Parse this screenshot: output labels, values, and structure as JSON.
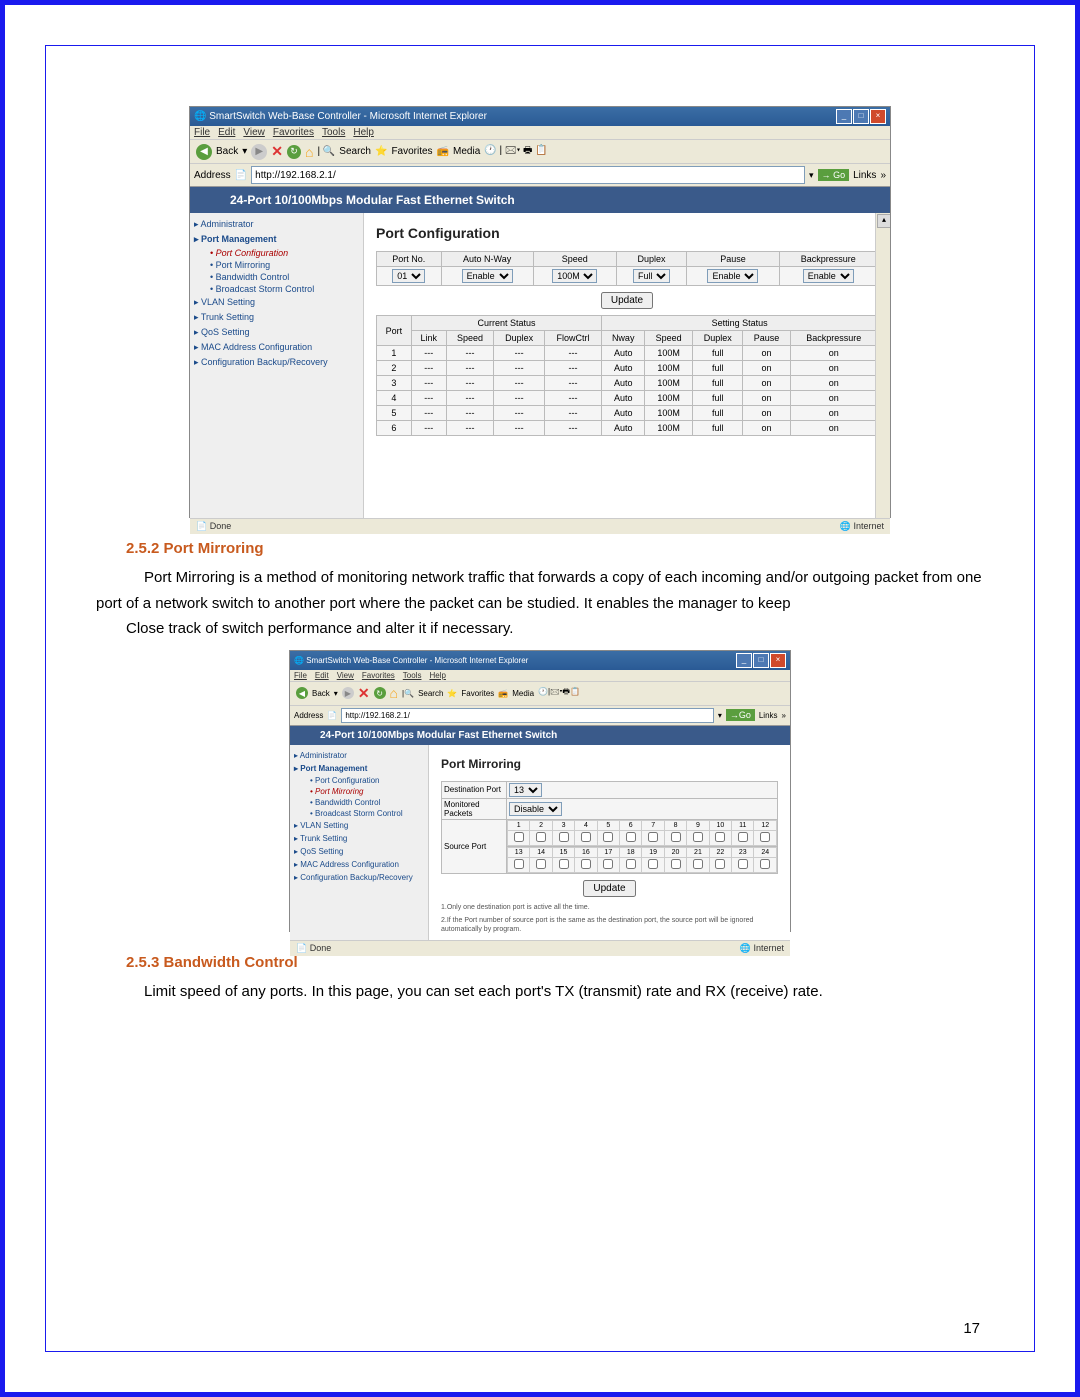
{
  "window": {
    "title": "SmartSwitch Web-Base Controller - Microsoft Internet Explorer",
    "menus": [
      "File",
      "Edit",
      "View",
      "Favorites",
      "Tools",
      "Help"
    ],
    "back": "Back",
    "search": "Search",
    "favorites": "Favorites",
    "media": "Media",
    "addr_label": "Address",
    "url": "http://192.168.2.1/",
    "go": "Go",
    "links": "Links",
    "done": "Done",
    "internet": "Internet"
  },
  "switch_title": "24-Port 10/100Mbps Modular Fast Ethernet Switch",
  "sidebar": {
    "items": [
      {
        "t": "Administrator",
        "cls": "grp"
      },
      {
        "t": "Port Management",
        "cls": "grp act"
      },
      {
        "t": "Port Configuration",
        "cls": "sub act"
      },
      {
        "t": "Port Mirroring",
        "cls": "sub reg"
      },
      {
        "t": "Bandwidth Control",
        "cls": "sub reg"
      },
      {
        "t": "Broadcast Storm Control",
        "cls": "sub reg"
      },
      {
        "t": "VLAN Setting",
        "cls": "grp"
      },
      {
        "t": "Trunk Setting",
        "cls": "grp"
      },
      {
        "t": "QoS Setting",
        "cls": "grp"
      },
      {
        "t": "MAC Address Configuration",
        "cls": "grp"
      },
      {
        "t": "Configuration Backup/Recovery",
        "cls": "grp"
      }
    ]
  },
  "sidebar2": {
    "items": [
      {
        "t": "Administrator",
        "cls": "grp"
      },
      {
        "t": "Port Management",
        "cls": "grp act"
      },
      {
        "t": "Port Configuration",
        "cls": "sub reg"
      },
      {
        "t": "Port Mirroring",
        "cls": "sub act"
      },
      {
        "t": "Bandwidth Control",
        "cls": "sub reg"
      },
      {
        "t": "Broadcast Storm Control",
        "cls": "sub reg"
      },
      {
        "t": "VLAN Setting",
        "cls": "grp"
      },
      {
        "t": "Trunk Setting",
        "cls": "grp"
      },
      {
        "t": "QoS Setting",
        "cls": "grp"
      },
      {
        "t": "MAC Address Configuration",
        "cls": "grp"
      },
      {
        "t": "Configuration Backup/Recovery",
        "cls": "grp"
      }
    ]
  },
  "portconfig": {
    "title": "Port Configuration",
    "headers": [
      "Port No.",
      "Auto N-Way",
      "Speed",
      "Duplex",
      "Pause",
      "Backpressure"
    ],
    "sel": {
      "port": "01",
      "auto": "Enable",
      "speed": "100M",
      "duplex": "Full",
      "pause": "Enable",
      "back": "Enable"
    },
    "update": "Update",
    "status_headers": {
      "port": "Port",
      "current": "Current Status",
      "setting": "Setting Status",
      "link": "Link",
      "speed": "Speed",
      "duplex": "Duplex",
      "flow": "FlowCtrl",
      "nway": "Nway",
      "pause": "Pause",
      "back": "Backpressure"
    },
    "rows": [
      {
        "p": "1",
        "l": "---",
        "s": "---",
        "d": "---",
        "f": "---",
        "nw": "Auto",
        "sp": "100M",
        "dp": "full",
        "pa": "on",
        "bk": "on"
      },
      {
        "p": "2",
        "l": "---",
        "s": "---",
        "d": "---",
        "f": "---",
        "nw": "Auto",
        "sp": "100M",
        "dp": "full",
        "pa": "on",
        "bk": "on"
      },
      {
        "p": "3",
        "l": "---",
        "s": "---",
        "d": "---",
        "f": "---",
        "nw": "Auto",
        "sp": "100M",
        "dp": "full",
        "pa": "on",
        "bk": "on"
      },
      {
        "p": "4",
        "l": "---",
        "s": "---",
        "d": "---",
        "f": "---",
        "nw": "Auto",
        "sp": "100M",
        "dp": "full",
        "pa": "on",
        "bk": "on"
      },
      {
        "p": "5",
        "l": "---",
        "s": "---",
        "d": "---",
        "f": "---",
        "nw": "Auto",
        "sp": "100M",
        "dp": "full",
        "pa": "on",
        "bk": "on"
      },
      {
        "p": "6",
        "l": "---",
        "s": "---",
        "d": "---",
        "f": "---",
        "nw": "Auto",
        "sp": "100M",
        "dp": "full",
        "pa": "on",
        "bk": "on"
      }
    ]
  },
  "mirror": {
    "title": "Port Mirroring",
    "dest_label": "Destination Port",
    "dest_val": "13",
    "mon_label": "Monitored Packets",
    "mon_val": "Disable",
    "src_label": "Source Port",
    "ports_a": [
      "1",
      "2",
      "3",
      "4",
      "5",
      "6",
      "7",
      "8",
      "9",
      "10",
      "11",
      "12"
    ],
    "ports_b": [
      "13",
      "14",
      "15",
      "16",
      "17",
      "18",
      "19",
      "20",
      "21",
      "22",
      "23",
      "24"
    ],
    "update": "Update",
    "note1": "1.Only one destination port is active all the time.",
    "note2": "2.If the Port number of source port is the same as the destination port, the source port will be ignored automatically by program."
  },
  "doc": {
    "h1": "2.5.2 Port Mirroring",
    "p1": "Port Mirroring is a method of monitoring network traffic that forwards a copy        of each incoming and/or outgoing packet from one port of a network switch to   another port where the packet can be studied. It enables the manager to keep",
    "p1b": "Close track of switch performance and alter it if necessary.",
    "h2": "2.5.3 Bandwidth Control",
    "p2": "Limit speed of any ports. In this page, you can set each port's TX (transmit) rate and RX (receive) rate.",
    "pgnum": "17"
  }
}
